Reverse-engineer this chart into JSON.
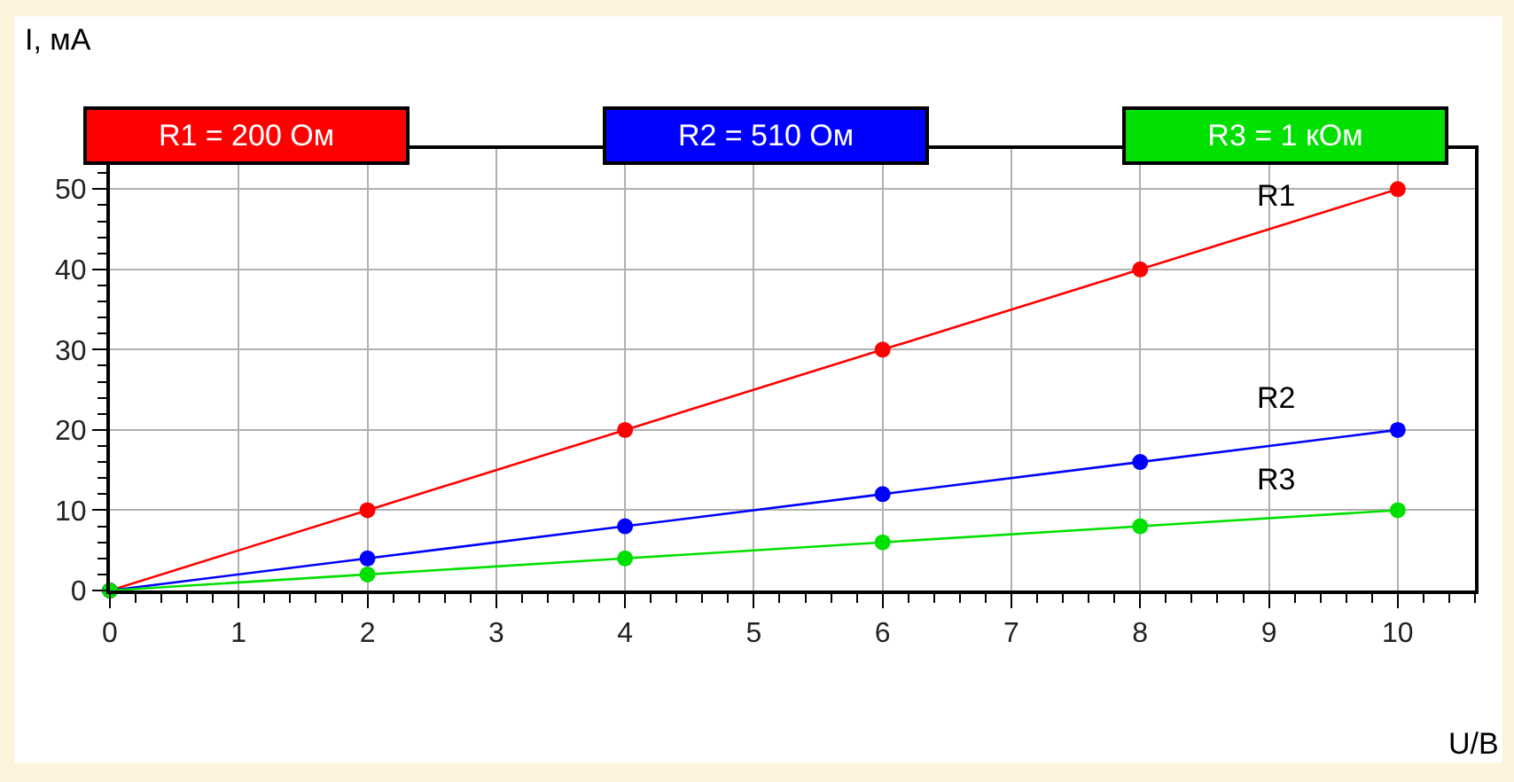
{
  "chart_data": {
    "type": "line",
    "xlabel": "U/B",
    "ylabel": "I, мА",
    "x": [
      0,
      2,
      4,
      6,
      8,
      10
    ],
    "series": [
      {
        "name": "R1 = 200 Ом",
        "color": "#ff0000",
        "values": [
          0,
          10,
          20,
          30,
          40,
          50
        ]
      },
      {
        "name": "R2 = 510 Ом",
        "color": "#0000ff",
        "values": [
          0,
          4,
          8,
          12,
          16,
          20
        ]
      },
      {
        "name": "R3 = 1 кОм",
        "color": "#00e000",
        "values": [
          0,
          2,
          4,
          6,
          8,
          10
        ]
      }
    ],
    "annotations": [
      "R1",
      "R2",
      "R3"
    ],
    "xlim": [
      0,
      10.6
    ],
    "xticks": [
      0,
      1,
      2,
      3,
      4,
      5,
      6,
      7,
      8,
      9,
      10
    ],
    "ylim": [
      0,
      55
    ],
    "yticks": [
      0,
      10,
      20,
      30,
      40,
      50
    ],
    "grid": true,
    "legend": "top",
    "marker": "circle",
    "line_style": "solid"
  }
}
